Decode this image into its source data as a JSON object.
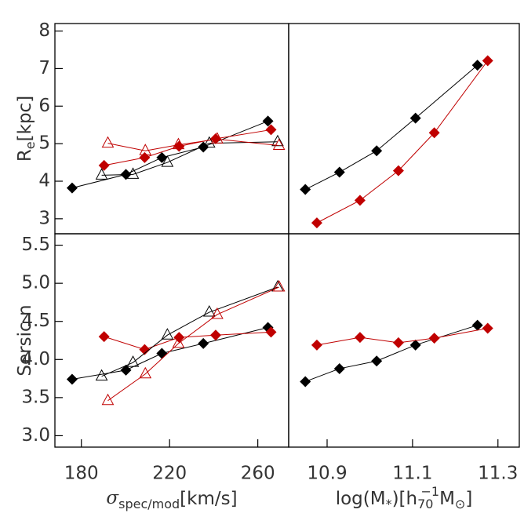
{
  "chart_data": [
    {
      "type": "scatter",
      "y_label": [
        {
          "text": "R"
        },
        {
          "text": "e",
          "pos": "sub"
        },
        {
          "text": "[kpc]"
        }
      ],
      "xlim": [
        168,
        274
      ],
      "ylim": [
        2.6,
        8.2
      ],
      "yticks": [
        3,
        4,
        5,
        6,
        7,
        8
      ],
      "series": [
        {
          "marker": "diamond",
          "color": "#000000",
          "x": [
            175.8,
            200.2,
            216.5,
            235.3,
            264.6
          ],
          "values": [
            3.82,
            4.18,
            4.63,
            4.91,
            5.6
          ]
        },
        {
          "marker": "diamond",
          "color": "#c00000",
          "x": [
            190.3,
            208.7,
            224.3,
            240.9,
            266
          ],
          "values": [
            4.42,
            4.63,
            4.93,
            5.13,
            5.37
          ]
        },
        {
          "marker": "triangle",
          "color": "#000000",
          "x": [
            189.2,
            203.4,
            219,
            238,
            269
          ],
          "values": [
            4.16,
            4.18,
            4.5,
            5.01,
            5.05
          ]
        },
        {
          "marker": "triangle",
          "color": "#c00000",
          "x": [
            192,
            209,
            224,
            241.6,
            269.6
          ],
          "values": [
            5.01,
            4.81,
            4.97,
            5.12,
            4.95
          ]
        }
      ]
    },
    {
      "type": "scatter",
      "xlim": [
        10.81,
        11.35
      ],
      "ylim": [
        2.6,
        8.2
      ],
      "series": [
        {
          "marker": "diamond",
          "color": "#000000",
          "x": [
            10.849,
            10.929,
            11.016,
            11.107,
            11.252
          ],
          "values": [
            3.78,
            4.24,
            4.81,
            5.68,
            7.09
          ]
        },
        {
          "marker": "diamond",
          "color": "#c00000",
          "x": [
            10.876,
            10.977,
            11.067,
            11.151,
            11.276
          ],
          "values": [
            2.89,
            3.49,
            4.28,
            5.29,
            7.21
          ]
        }
      ]
    },
    {
      "type": "scatter",
      "x_label": [
        {
          "text": "σ"
        },
        {
          "text": "spec/mod",
          "pos": "sub"
        },
        {
          "text": "[km/s]"
        }
      ],
      "y_label": [
        {
          "text": "Sersic n"
        }
      ],
      "xlim": [
        168,
        274
      ],
      "ylim": [
        2.85,
        5.65
      ],
      "xticks": [
        180,
        220,
        260
      ],
      "yticks": [
        {
          "value": 3,
          "label": "3.0"
        },
        3.5,
        {
          "value": 4,
          "label": "4.0"
        },
        4.5,
        {
          "value": 5,
          "label": "5.0"
        },
        5.5
      ],
      "series": [
        {
          "marker": "diamond",
          "color": "#000000",
          "x": [
            175.8,
            200.2,
            216.5,
            235.3,
            264.6
          ],
          "values": [
            3.74,
            3.86,
            4.08,
            4.21,
            4.42
          ]
        },
        {
          "marker": "diamond",
          "color": "#c00000",
          "x": [
            190.3,
            208.7,
            224.3,
            240.9,
            266
          ],
          "values": [
            4.3,
            4.13,
            4.29,
            4.32,
            4.36
          ]
        },
        {
          "marker": "triangle",
          "color": "#000000",
          "x": [
            189.2,
            203.4,
            219,
            238,
            269
          ],
          "values": [
            3.78,
            3.96,
            4.32,
            4.62,
            4.95
          ]
        },
        {
          "marker": "triangle",
          "color": "#c00000",
          "x": [
            192,
            209,
            224,
            241.6,
            269.6
          ],
          "values": [
            3.46,
            3.81,
            4.21,
            4.59,
            4.95
          ]
        }
      ]
    },
    {
      "type": "scatter",
      "x_label": [
        {
          "text": "log(M"
        },
        {
          "text": "*",
          "pos": "sub"
        },
        {
          "text": ")[h"
        },
        {
          "text": "70",
          "pos": "sub"
        },
        {
          "text": "−1",
          "pos": "sup"
        },
        {
          "text": "M"
        },
        {
          "text": "⊙",
          "pos": "sub"
        },
        {
          "text": "]"
        }
      ],
      "xlim": [
        10.81,
        11.35
      ],
      "ylim": [
        2.85,
        5.65
      ],
      "xticks": [
        10.9,
        11.1,
        11.3
      ],
      "series": [
        {
          "marker": "diamond",
          "color": "#000000",
          "x": [
            10.849,
            10.929,
            11.016,
            11.107,
            11.252
          ],
          "values": [
            3.71,
            3.88,
            3.98,
            4.19,
            4.45
          ]
        },
        {
          "marker": "diamond",
          "color": "#c00000",
          "x": [
            10.876,
            10.977,
            11.067,
            11.151,
            11.276
          ],
          "values": [
            4.19,
            4.29,
            4.22,
            4.28,
            4.41
          ]
        }
      ]
    }
  ]
}
